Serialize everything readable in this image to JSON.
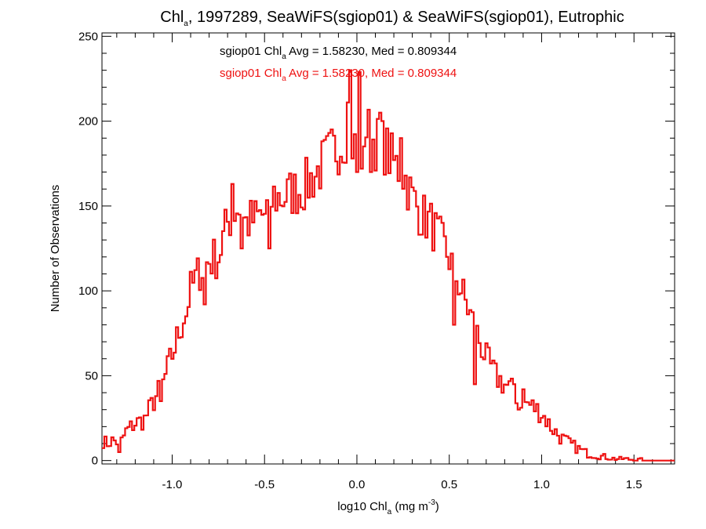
{
  "chart_data": {
    "type": "histogram",
    "title": {
      "base": "Chl",
      "sub": "a",
      "rest": ", 1997289, SeaWiFS(sgiop01) & SeaWiFS(sgiop01), Eutrophic"
    },
    "xlabel": {
      "base": "log10 Chl",
      "sub": "a",
      "rest": " (mg m",
      "sup": "-3",
      "end": ")"
    },
    "ylabel": "Number of Observations",
    "xlim": [
      -1.38,
      1.72
    ],
    "ylim": [
      -2,
      252
    ],
    "xticks": [
      -1.0,
      -0.5,
      0.0,
      0.5,
      1.0,
      1.5
    ],
    "xtick_labels": [
      "-1.0",
      "-0.5",
      "0.0",
      "0.5",
      "1.0",
      "1.5"
    ],
    "yticks": [
      0,
      50,
      100,
      150,
      200,
      250
    ],
    "ytick_labels": [
      "0",
      "50",
      "100",
      "150",
      "200",
      "250"
    ],
    "annotations": [
      {
        "color": "#000000",
        "prefix": "sgiop01 Chl",
        "sub": "a",
        "suffix": " Avg = 1.58230, Med = 0.809344"
      },
      {
        "color": "#ee1111",
        "prefix": "sgiop01 Chl",
        "sub": "a",
        "suffix": " Avg = 1.58230, Med = 0.809344"
      }
    ],
    "series": [
      {
        "name": "sgiop01",
        "color": "#ee1111",
        "bin_width": 0.0125,
        "keypoints": [
          [
            -1.38,
            12
          ],
          [
            -1.35,
            10
          ],
          [
            -1.32,
            12
          ],
          [
            -1.28,
            10
          ],
          [
            -1.25,
            17
          ],
          [
            -1.2,
            22
          ],
          [
            -1.15,
            24
          ],
          [
            -1.1,
            35
          ],
          [
            -1.05,
            45
          ],
          [
            -1.0,
            62
          ],
          [
            -0.95,
            80
          ],
          [
            -0.9,
            100
          ],
          [
            -0.85,
            112
          ],
          [
            -0.8,
            118
          ],
          [
            -0.75,
            120
          ],
          [
            -0.7,
            140
          ],
          [
            -0.65,
            150
          ],
          [
            -0.6,
            140
          ],
          [
            -0.55,
            142
          ],
          [
            -0.5,
            145
          ],
          [
            -0.45,
            155
          ],
          [
            -0.4,
            155
          ],
          [
            -0.35,
            158
          ],
          [
            -0.3,
            160
          ],
          [
            -0.25,
            165
          ],
          [
            -0.2,
            172
          ],
          [
            -0.15,
            180
          ],
          [
            -0.1,
            185
          ],
          [
            -0.05,
            195
          ],
          [
            0.0,
            192
          ],
          [
            0.05,
            195
          ],
          [
            0.1,
            188
          ],
          [
            0.15,
            185
          ],
          [
            0.2,
            175
          ],
          [
            0.25,
            170
          ],
          [
            0.3,
            155
          ],
          [
            0.35,
            145
          ],
          [
            0.4,
            140
          ],
          [
            0.45,
            130
          ],
          [
            0.5,
            120
          ],
          [
            0.55,
            105
          ],
          [
            0.6,
            90
          ],
          [
            0.65,
            75
          ],
          [
            0.7,
            60
          ],
          [
            0.75,
            50
          ],
          [
            0.8,
            45
          ],
          [
            0.85,
            40
          ],
          [
            0.9,
            35
          ],
          [
            0.95,
            32
          ],
          [
            1.0,
            28
          ],
          [
            1.05,
            20
          ],
          [
            1.1,
            14
          ],
          [
            1.15,
            10
          ],
          [
            1.2,
            7
          ],
          [
            1.25,
            4
          ],
          [
            1.3,
            3
          ],
          [
            1.35,
            2
          ],
          [
            1.4,
            1
          ],
          [
            1.45,
            1
          ],
          [
            1.5,
            0.5
          ],
          [
            1.55,
            0.3
          ],
          [
            1.6,
            0
          ],
          [
            1.72,
            0
          ]
        ],
        "spikes": [
          [
            -1.29,
            5
          ],
          [
            -1.06,
            35
          ],
          [
            -0.93,
            85
          ],
          [
            -0.83,
            92
          ],
          [
            -0.68,
            163
          ],
          [
            -0.62,
            125
          ],
          [
            -0.48,
            125
          ],
          [
            -0.05,
            211
          ],
          [
            -0.04,
            230
          ],
          [
            -0.02,
            178
          ],
          [
            0.0,
            170
          ],
          [
            0.01,
            229
          ],
          [
            0.03,
            172
          ],
          [
            0.07,
            170
          ],
          [
            0.12,
            205
          ],
          [
            0.24,
            190
          ],
          [
            0.52,
            80
          ],
          [
            0.64,
            45
          ],
          [
            0.85,
            45
          ],
          [
            0.87,
            30
          ],
          [
            0.9,
            42
          ]
        ]
      }
    ]
  }
}
